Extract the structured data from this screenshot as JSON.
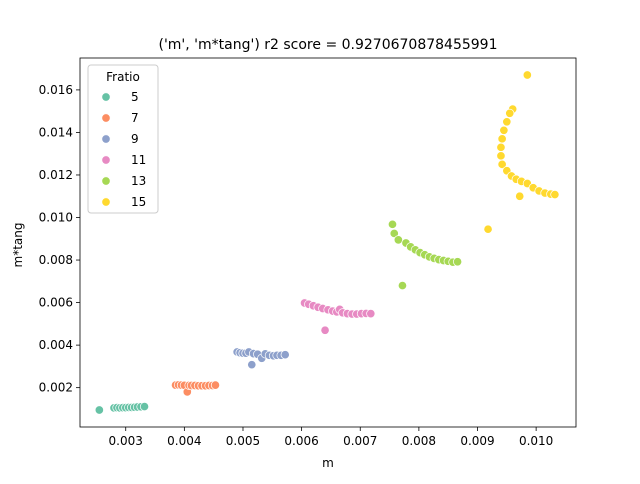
{
  "chart_data": {
    "type": "scatter",
    "title": "('m', 'm*tang') r2 score = 0.9270670878455991",
    "xlabel": "m",
    "ylabel": "m*tang",
    "xlim": [
      0.00222,
      0.01068
    ],
    "ylim": [
      0.00015,
      0.0175
    ],
    "xticks": [
      0.003,
      0.004,
      0.005,
      0.006,
      0.007,
      0.008,
      0.009,
      0.01
    ],
    "xtick_labels": [
      "0.003",
      "0.004",
      "0.005",
      "0.006",
      "0.007",
      "0.008",
      "0.009",
      "0.010"
    ],
    "yticks": [
      0.002,
      0.004,
      0.006,
      0.008,
      0.01,
      0.012,
      0.014,
      0.016
    ],
    "ytick_labels": [
      "0.002",
      "0.004",
      "0.006",
      "0.008",
      "0.010",
      "0.012",
      "0.014",
      "0.016"
    ],
    "grid": false,
    "legend": {
      "title": "Fratio",
      "placement": "top-left"
    },
    "series": [
      {
        "name": "5",
        "color": "#66c2a5",
        "points": [
          [
            0.00255,
            0.00095
          ],
          [
            0.0028,
            0.00105
          ],
          [
            0.00285,
            0.00106
          ],
          [
            0.0029,
            0.00105
          ],
          [
            0.00295,
            0.00106
          ],
          [
            0.003,
            0.00106
          ],
          [
            0.00305,
            0.00107
          ],
          [
            0.0031,
            0.00107
          ],
          [
            0.00315,
            0.00108
          ],
          [
            0.0032,
            0.00109
          ],
          [
            0.00326,
            0.0011
          ],
          [
            0.00332,
            0.00111
          ]
        ]
      },
      {
        "name": "7",
        "color": "#fc8d62",
        "points": [
          [
            0.00385,
            0.00212
          ],
          [
            0.0039,
            0.00213
          ],
          [
            0.00395,
            0.00212
          ],
          [
            0.004,
            0.00211
          ],
          [
            0.00405,
            0.0018
          ],
          [
            0.00408,
            0.00211
          ],
          [
            0.00412,
            0.0021
          ],
          [
            0.00418,
            0.0021
          ],
          [
            0.00424,
            0.00209
          ],
          [
            0.0043,
            0.00209
          ],
          [
            0.00436,
            0.00209
          ],
          [
            0.00442,
            0.0021
          ],
          [
            0.00448,
            0.0021
          ],
          [
            0.00453,
            0.00212
          ]
        ]
      },
      {
        "name": "9",
        "color": "#8da0cb",
        "points": [
          [
            0.0049,
            0.00368
          ],
          [
            0.00495,
            0.00364
          ],
          [
            0.005,
            0.00362
          ],
          [
            0.00505,
            0.00362
          ],
          [
            0.0051,
            0.00368
          ],
          [
            0.00515,
            0.00308
          ],
          [
            0.00518,
            0.0036
          ],
          [
            0.00525,
            0.00357
          ],
          [
            0.00532,
            0.00338
          ],
          [
            0.00538,
            0.00359
          ],
          [
            0.00545,
            0.00352
          ],
          [
            0.00552,
            0.0035
          ],
          [
            0.00558,
            0.00352
          ],
          [
            0.00565,
            0.00352
          ],
          [
            0.00572,
            0.00355
          ]
        ]
      },
      {
        "name": "11",
        "color": "#e78ac3",
        "points": [
          [
            0.00605,
            0.00598
          ],
          [
            0.00612,
            0.00592
          ],
          [
            0.0062,
            0.00585
          ],
          [
            0.00628,
            0.00578
          ],
          [
            0.00636,
            0.00572
          ],
          [
            0.0064,
            0.0047
          ],
          [
            0.00645,
            0.00566
          ],
          [
            0.00653,
            0.0056
          ],
          [
            0.0066,
            0.00556
          ],
          [
            0.00665,
            0.00568
          ],
          [
            0.0067,
            0.00552
          ],
          [
            0.00678,
            0.00548
          ],
          [
            0.00686,
            0.00546
          ],
          [
            0.00694,
            0.00546
          ],
          [
            0.00702,
            0.00548
          ],
          [
            0.0071,
            0.00549
          ],
          [
            0.00718,
            0.00548
          ]
        ]
      },
      {
        "name": "13",
        "color": "#a6d854",
        "points": [
          [
            0.00755,
            0.00968
          ],
          [
            0.00758,
            0.00925
          ],
          [
            0.00765,
            0.00895
          ],
          [
            0.00772,
            0.0068
          ],
          [
            0.00778,
            0.0088
          ],
          [
            0.00786,
            0.00862
          ],
          [
            0.00794,
            0.00848
          ],
          [
            0.00802,
            0.00835
          ],
          [
            0.0081,
            0.00825
          ],
          [
            0.00818,
            0.00815
          ],
          [
            0.00826,
            0.00808
          ],
          [
            0.00834,
            0.00802
          ],
          [
            0.00842,
            0.00798
          ],
          [
            0.0085,
            0.00794
          ],
          [
            0.00858,
            0.0079
          ],
          [
            0.00866,
            0.00792
          ]
        ]
      },
      {
        "name": "15",
        "color": "#ffd92f",
        "points": [
          [
            0.00985,
            0.0167
          ],
          [
            0.0096,
            0.0151
          ],
          [
            0.00955,
            0.0149
          ],
          [
            0.0095,
            0.0145
          ],
          [
            0.00945,
            0.0141
          ],
          [
            0.00942,
            0.0137
          ],
          [
            0.0094,
            0.0133
          ],
          [
            0.0094,
            0.0129
          ],
          [
            0.00942,
            0.0125
          ],
          [
            0.0095,
            0.0122
          ],
          [
            0.00958,
            0.01195
          ],
          [
            0.00966,
            0.0118
          ],
          [
            0.00975,
            0.0117
          ],
          [
            0.00972,
            0.011
          ],
          [
            0.00985,
            0.0116
          ],
          [
            0.00995,
            0.0114
          ],
          [
            0.01005,
            0.01125
          ],
          [
            0.01015,
            0.01115
          ],
          [
            0.01025,
            0.0111
          ],
          [
            0.01032,
            0.01108
          ],
          [
            0.00918,
            0.00945
          ]
        ]
      }
    ]
  }
}
